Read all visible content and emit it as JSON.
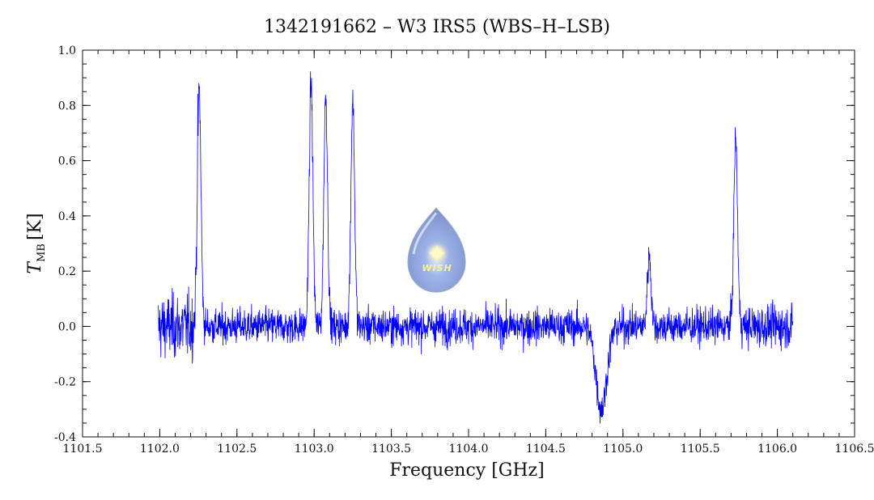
{
  "chart_data": {
    "type": "line",
    "title": "1342191662 – W3 IRS5 (WBS–H–LSB)",
    "xlabel": "Frequency [GHz]",
    "ylabel_main": "T",
    "ylabel_sub": "MB",
    "ylabel_unit": "[K]",
    "xlim": [
      1101.5,
      1106.5
    ],
    "ylim": [
      -0.4,
      1.0
    ],
    "x_ticks": [
      "1101.5",
      "1102.0",
      "1102.5",
      "1103.0",
      "1103.5",
      "1104.0",
      "1104.5",
      "1105.0",
      "1105.5",
      "1106.0",
      "1106.5"
    ],
    "y_ticks": [
      "-0.4",
      "-0.2",
      "0.0",
      "0.2",
      "0.4",
      "0.6",
      "0.8",
      "1.0"
    ],
    "grid": false,
    "series_color": "#0000ff",
    "x_range": [
      1101.99,
      1106.1
    ],
    "noise_rms": 0.045,
    "features": [
      {
        "center": 1102.255,
        "peak": 0.86,
        "width": 0.012
      },
      {
        "center": 1102.98,
        "peak": 0.88,
        "width": 0.012
      },
      {
        "center": 1103.075,
        "peak": 0.84,
        "width": 0.012
      },
      {
        "center": 1103.25,
        "peak": 0.82,
        "width": 0.012
      },
      {
        "center": 1105.17,
        "peak": 0.26,
        "width": 0.012
      },
      {
        "center": 1105.73,
        "peak": 0.68,
        "width": 0.012
      },
      {
        "center": 1104.86,
        "peak": -0.3,
        "width": 0.035
      }
    ]
  },
  "logo": {
    "text": "WISH",
    "icon": "wish-droplet-logo-icon"
  }
}
